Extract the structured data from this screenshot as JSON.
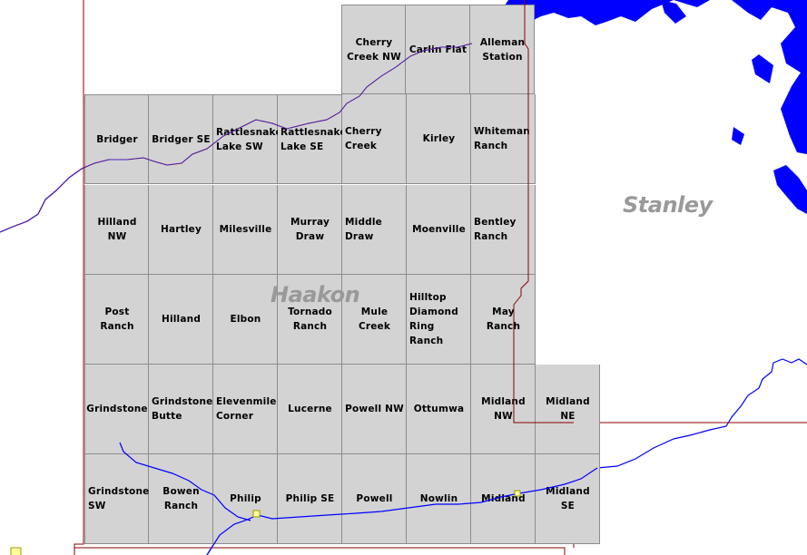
{
  "map": {
    "counties": {
      "haakon": "Haakon",
      "stanley": "Stanley"
    },
    "quads": [
      {
        "name": "Cherry Creek NW",
        "row": 0,
        "col": 4,
        "align": "center"
      },
      {
        "name": "Carlin Flat",
        "row": 0,
        "col": 5,
        "align": "center"
      },
      {
        "name": "Alleman Station",
        "row": 0,
        "col": 6,
        "align": "center"
      },
      {
        "name": "Bridger",
        "row": 1,
        "col": 0,
        "align": "center"
      },
      {
        "name": "Bridger SE",
        "row": 1,
        "col": 1,
        "align": "center"
      },
      {
        "name": "Rattlesnake Lake SW",
        "row": 1,
        "col": 2,
        "align": "left"
      },
      {
        "name": "Rattlesnake Lake SE",
        "row": 1,
        "col": 3,
        "align": "left"
      },
      {
        "name": "Cherry Creek",
        "row": 1,
        "col": 4,
        "align": "left"
      },
      {
        "name": "Kirley",
        "row": 1,
        "col": 5,
        "align": "center"
      },
      {
        "name": "Whiteman Ranch",
        "row": 1,
        "col": 6,
        "align": "left"
      },
      {
        "name": "Hilland NW",
        "row": 2,
        "col": 0,
        "align": "center"
      },
      {
        "name": "Hartley",
        "row": 2,
        "col": 1,
        "align": "center"
      },
      {
        "name": "Milesville",
        "row": 2,
        "col": 2,
        "align": "center"
      },
      {
        "name": "Murray Draw",
        "row": 2,
        "col": 3,
        "align": "center"
      },
      {
        "name": "Middle Draw",
        "row": 2,
        "col": 4,
        "align": "left"
      },
      {
        "name": "Moenville",
        "row": 2,
        "col": 5,
        "align": "center"
      },
      {
        "name": "Bentley Ranch",
        "row": 2,
        "col": 6,
        "align": "left"
      },
      {
        "name": "Post Ranch",
        "row": 3,
        "col": 0,
        "align": "center"
      },
      {
        "name": "Hilland",
        "row": 3,
        "col": 1,
        "align": "center"
      },
      {
        "name": "Elbon",
        "row": 3,
        "col": 2,
        "align": "center"
      },
      {
        "name": "Tornado Ranch",
        "row": 3,
        "col": 3,
        "align": "center"
      },
      {
        "name": "Mule Creek",
        "row": 3,
        "col": 4,
        "align": "center"
      },
      {
        "name": "Hilltop Diamond Ring Ranch",
        "row": 3,
        "col": 5,
        "align": "left"
      },
      {
        "name": "May Ranch",
        "row": 3,
        "col": 6,
        "align": "center"
      },
      {
        "name": "Grindstone",
        "row": 4,
        "col": 0,
        "align": "center"
      },
      {
        "name": "Grindstone Butte",
        "row": 4,
        "col": 1,
        "align": "left"
      },
      {
        "name": "Elevenmile Corner",
        "row": 4,
        "col": 2,
        "align": "left"
      },
      {
        "name": "Lucerne",
        "row": 4,
        "col": 3,
        "align": "center"
      },
      {
        "name": "Powell NW",
        "row": 4,
        "col": 4,
        "align": "center"
      },
      {
        "name": "Ottumwa",
        "row": 4,
        "col": 5,
        "align": "center"
      },
      {
        "name": "Midland NW",
        "row": 4,
        "col": 6,
        "align": "center"
      },
      {
        "name": "Midland NE",
        "row": 4,
        "col": 7,
        "align": "center"
      },
      {
        "name": "Grindstone SW",
        "row": 5,
        "col": 0,
        "align": "left"
      },
      {
        "name": "Bowen Ranch",
        "row": 5,
        "col": 1,
        "align": "center"
      },
      {
        "name": "Philip",
        "row": 5,
        "col": 2,
        "align": "center"
      },
      {
        "name": "Philip SE",
        "row": 5,
        "col": 3,
        "align": "center"
      },
      {
        "name": "Powell",
        "row": 5,
        "col": 4,
        "align": "center"
      },
      {
        "name": "Nowlin",
        "row": 5,
        "col": 5,
        "align": "center"
      },
      {
        "name": "Midland",
        "row": 5,
        "col": 6,
        "align": "center"
      },
      {
        "name": "Midland SE",
        "row": 5,
        "col": 7,
        "align": "center"
      }
    ]
  },
  "colors": {
    "quad_fill": "#d3d3d3",
    "quad_border": "#8c8c8c",
    "county_border": "#8b0000",
    "water": "#0000ff",
    "town_marker": "#ffff99"
  }
}
